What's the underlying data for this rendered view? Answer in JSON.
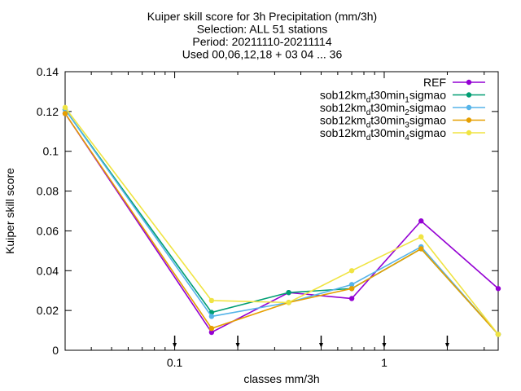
{
  "chart_data": {
    "type": "line",
    "title_lines": [
      "Kuiper skill score  for 3h Precipitation (mm/3h)",
      "Selection: ALL      51 stations",
      "Period: 20211110-20211114",
      "Used 00,06,12,18 + 03 04 ... 36"
    ],
    "xlabel": "classes mm/3h",
    "ylabel": "Kuiper skill score",
    "x_scale": "log",
    "xlim": [
      0.03,
      3.5
    ],
    "ylim": [
      0,
      0.14
    ],
    "y_ticks": [
      "0",
      "0.02",
      "0.04",
      "0.06",
      "0.08",
      "0.1",
      "0.12",
      "0.14"
    ],
    "y_tick_values": [
      0,
      0.02,
      0.04,
      0.06,
      0.08,
      0.1,
      0.12,
      0.14
    ],
    "x_ticks": [
      "0.1",
      "1"
    ],
    "x_tick_values": [
      0.1,
      1
    ],
    "class_markers": [
      0.1,
      0.2,
      0.5,
      1,
      2
    ],
    "x": [
      0.03,
      0.15,
      0.35,
      0.7,
      1.5,
      3.5
    ],
    "series": [
      {
        "name": "REF",
        "name_parts": [
          [
            "REF",
            ""
          ]
        ],
        "color": "#9400d3",
        "values": [
          0.119,
          0.009,
          0.029,
          0.026,
          0.065,
          0.031
        ]
      },
      {
        "name": "sob12km_dt30min_1sigmao",
        "name_parts": [
          [
            "sob12km",
            ""
          ],
          [
            "d",
            "sub"
          ],
          [
            "t30min",
            ""
          ],
          [
            "1",
            "sub"
          ],
          [
            "sigmao",
            ""
          ]
        ],
        "color": "#009e73",
        "values": [
          0.121,
          0.019,
          0.029,
          0.031,
          0.051,
          0.008
        ]
      },
      {
        "name": "sob12km_dt30min_2sigmao",
        "name_parts": [
          [
            "sob12km",
            ""
          ],
          [
            "d",
            "sub"
          ],
          [
            "t30min",
            ""
          ],
          [
            "2",
            "sub"
          ],
          [
            "sigmao",
            ""
          ]
        ],
        "color": "#56b4e9",
        "values": [
          0.121,
          0.017,
          0.024,
          0.033,
          0.052,
          0.008
        ]
      },
      {
        "name": "sob12km_dt30min_3sigmao",
        "name_parts": [
          [
            "sob12km",
            ""
          ],
          [
            "d",
            "sub"
          ],
          [
            "t30min",
            ""
          ],
          [
            "3",
            "sub"
          ],
          [
            "sigmao",
            ""
          ]
        ],
        "color": "#e69f00",
        "values": [
          0.119,
          0.011,
          0.024,
          0.031,
          0.051,
          0.008
        ]
      },
      {
        "name": "sob12km_dt30min_4sigmao",
        "name_parts": [
          [
            "sob12km",
            ""
          ],
          [
            "d",
            "sub"
          ],
          [
            "t30min",
            ""
          ],
          [
            "4",
            "sub"
          ],
          [
            "sigmao",
            ""
          ]
        ],
        "color": "#f0e442",
        "values": [
          0.122,
          0.025,
          0.024,
          0.04,
          0.057,
          0.008
        ]
      }
    ],
    "legend_position": "top-right",
    "grid": false
  }
}
